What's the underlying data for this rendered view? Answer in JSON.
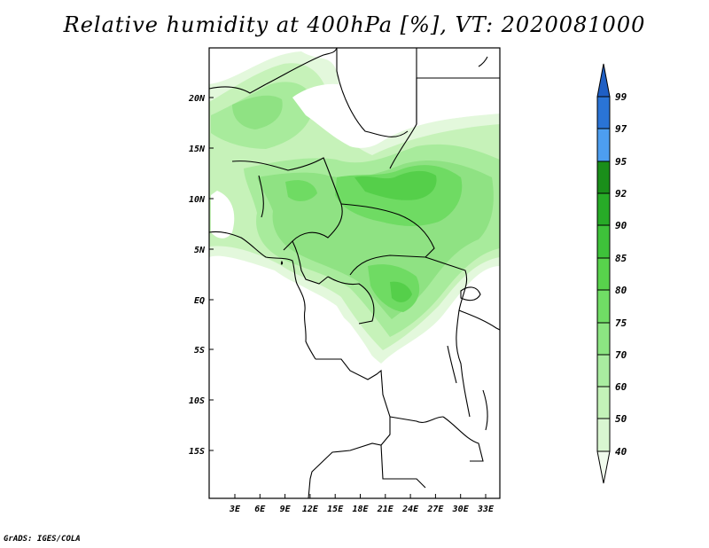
{
  "title": "Relative humidity at 400hPa [%], VT: 2020081000",
  "credit": "GrADS: IGES/COLA",
  "map": {
    "lat_labels": [
      "20N",
      "15N",
      "10N",
      "5N",
      "EQ",
      "5S",
      "10S",
      "15S"
    ],
    "lon_labels": [
      "3E",
      "6E",
      "9E",
      "12E",
      "15E",
      "18E",
      "21E",
      "24E",
      "27E",
      "30E",
      "33E"
    ]
  },
  "colorbar": {
    "levels": [
      "40",
      "50",
      "60",
      "70",
      "75",
      "80",
      "85",
      "90",
      "92",
      "95",
      "97",
      "99"
    ],
    "colors": [
      "#f0fbed",
      "#d9f6d1",
      "#c3f2b8",
      "#a9eca0",
      "#8ce582",
      "#70dd65",
      "#58d24c",
      "#3ec23a",
      "#27ab27",
      "#1a8e1a",
      "#4d9ef0",
      "#2a74d6",
      "#1f5fc4"
    ]
  }
}
